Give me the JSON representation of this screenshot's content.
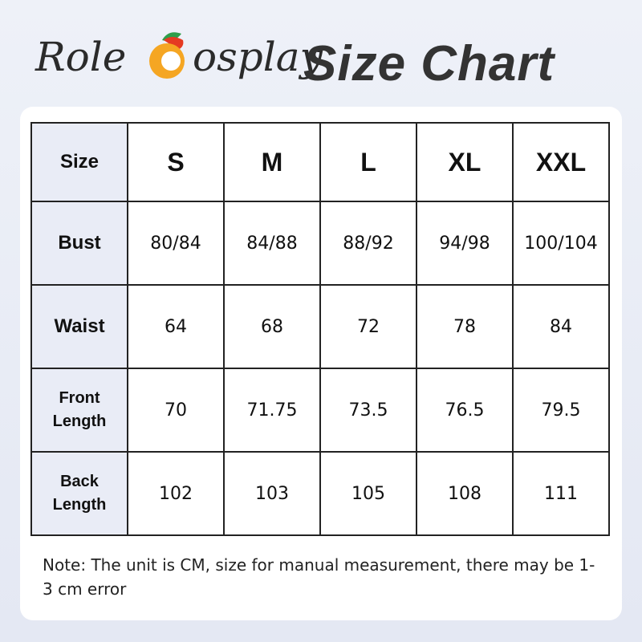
{
  "header": {
    "brand_start": "Role",
    "brand_logo_letter": "C",
    "brand_end": "osplay",
    "title": "Size Chart"
  },
  "table": {
    "columns": [
      "Size",
      "S",
      "M",
      "L",
      "XL",
      "XXL"
    ],
    "rows": [
      [
        "Bust",
        "80/84",
        "84/88",
        "88/92",
        "94/98",
        "100/104"
      ],
      [
        "Waist",
        "64",
        "68",
        "72",
        "78",
        "84"
      ],
      [
        "Front Length",
        "70",
        "71.75",
        "73.5",
        "76.5",
        "79.5"
      ],
      [
        "Back Length",
        "102",
        "103",
        "105",
        "108",
        "111"
      ]
    ]
  },
  "note": "Note: The unit is CM, size for manual measurement, there may be 1-3 cm error"
}
